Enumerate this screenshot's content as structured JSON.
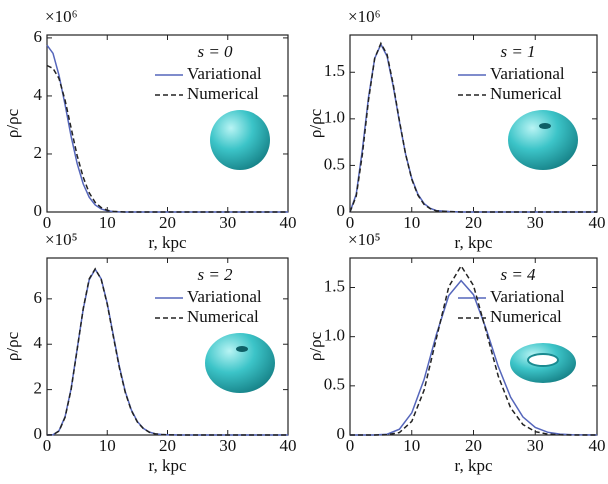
{
  "chart_data": [
    {
      "type": "line",
      "legend_title": "s = 0",
      "multiplier": "×10⁶",
      "xlabel": "r, kpc",
      "ylabel": "ρ/ρc",
      "x": [
        0,
        1,
        2,
        3,
        4,
        5,
        6,
        7,
        8,
        9,
        10,
        11,
        12,
        13,
        14,
        16,
        18,
        20,
        22,
        24,
        26,
        28,
        30,
        32,
        34,
        36,
        38,
        40
      ],
      "series": [
        {
          "name": "Variational",
          "color": "#5566bb",
          "linestyle": "solid",
          "values": [
            5.75,
            5.47,
            4.71,
            3.69,
            2.61,
            1.68,
            0.97,
            0.51,
            0.24,
            0.105,
            0.04,
            0.015,
            0.005,
            0,
            0,
            0,
            0,
            0,
            0,
            0,
            0,
            0,
            0,
            0,
            0,
            0,
            0,
            0
          ]
        },
        {
          "name": "Numerical",
          "color": "#222222",
          "linestyle": "dashed",
          "values": [
            5.05,
            4.95,
            4.6,
            3.85,
            2.9,
            1.95,
            1.2,
            0.66,
            0.33,
            0.15,
            0.06,
            0.02,
            0.01,
            0,
            0,
            0,
            0,
            0,
            0,
            0,
            0,
            0,
            0,
            0,
            0,
            0,
            0,
            0
          ]
        }
      ],
      "xlim": [
        0,
        40
      ],
      "ylim": [
        0,
        6.1
      ],
      "xticks": [
        0,
        10,
        20,
        30,
        40
      ],
      "yticks": [
        0,
        2,
        4,
        6
      ]
    },
    {
      "type": "line",
      "legend_title": "s = 1",
      "multiplier": "×10⁶",
      "xlabel": "r, kpc",
      "ylabel": "ρ/ρc",
      "x": [
        0,
        1,
        2,
        3,
        4,
        5,
        6,
        7,
        8,
        9,
        10,
        11,
        12,
        13,
        14,
        16,
        18,
        20,
        22,
        24,
        26,
        28,
        30,
        32,
        34,
        36,
        38,
        40
      ],
      "series": [
        {
          "name": "Variational",
          "color": "#5566bb",
          "linestyle": "solid",
          "values": [
            0,
            0.19,
            0.67,
            1.23,
            1.65,
            1.8,
            1.67,
            1.35,
            0.97,
            0.62,
            0.36,
            0.19,
            0.09,
            0.04,
            0.015,
            0.005,
            0,
            0,
            0,
            0,
            0,
            0,
            0,
            0,
            0,
            0,
            0,
            0
          ]
        },
        {
          "name": "Numerical",
          "color": "#222222",
          "linestyle": "dashed",
          "values": [
            0,
            0.17,
            0.62,
            1.2,
            1.65,
            1.81,
            1.69,
            1.37,
            0.98,
            0.62,
            0.35,
            0.18,
            0.08,
            0.035,
            0.012,
            0.004,
            0,
            0,
            0,
            0,
            0,
            0,
            0,
            0,
            0,
            0,
            0,
            0
          ]
        }
      ],
      "xlim": [
        0,
        40
      ],
      "ylim": [
        0,
        1.9
      ],
      "xticks": [
        0,
        10,
        20,
        30,
        40
      ],
      "yticks": [
        0,
        0.5,
        {
          "value": 1,
          "label": "1.0"
        },
        1.5
      ]
    },
    {
      "type": "line",
      "legend_title": "s = 2",
      "multiplier": "×10⁵",
      "xlabel": "r, kpc",
      "ylabel": "ρ/ρc",
      "x": [
        0,
        1,
        2,
        3,
        4,
        5,
        6,
        7,
        8,
        9,
        10,
        11,
        12,
        13,
        14,
        15,
        16,
        17,
        18,
        19,
        20,
        22,
        24,
        26,
        28,
        30,
        32,
        34,
        36,
        38,
        40
      ],
      "series": [
        {
          "name": "Variational",
          "color": "#5566bb",
          "linestyle": "solid",
          "values": [
            0,
            0.01,
            0.19,
            0.81,
            2.04,
            3.77,
            5.54,
            6.84,
            7.3,
            6.88,
            5.79,
            4.4,
            3.03,
            1.91,
            1.11,
            0.59,
            0.29,
            0.13,
            0.05,
            0.02,
            0.01,
            0,
            0,
            0,
            0,
            0,
            0,
            0,
            0,
            0,
            0
          ]
        },
        {
          "name": "Numerical",
          "color": "#222222",
          "linestyle": "dashed",
          "values": [
            0,
            0.01,
            0.17,
            0.78,
            2.0,
            3.75,
            5.56,
            6.88,
            7.32,
            6.86,
            5.75,
            4.35,
            2.98,
            1.87,
            1.08,
            0.57,
            0.28,
            0.12,
            0.05,
            0.02,
            0.01,
            0,
            0,
            0,
            0,
            0,
            0,
            0,
            0,
            0,
            0
          ]
        }
      ],
      "xlim": [
        0,
        40
      ],
      "ylim": [
        0,
        7.8
      ],
      "xticks": [
        0,
        10,
        20,
        30,
        40
      ],
      "yticks": [
        0,
        2,
        4,
        6
      ]
    },
    {
      "type": "line",
      "legend_title": "s = 4",
      "multiplier": "×10⁵",
      "xlabel": "r, kpc",
      "ylabel": "ρ/ρc",
      "x": [
        0,
        2,
        4,
        6,
        8,
        10,
        12,
        14,
        16,
        18,
        20,
        22,
        24,
        26,
        28,
        30,
        32,
        34,
        36,
        38,
        40
      ],
      "series": [
        {
          "name": "Variational",
          "color": "#5566bb",
          "linestyle": "solid",
          "values": [
            0,
            0,
            0,
            0.008,
            0.059,
            0.226,
            0.565,
            1.022,
            1.419,
            1.57,
            1.427,
            1.085,
            0.699,
            0.385,
            0.184,
            0.076,
            0.028,
            0.009,
            0.003,
            0.001,
            0
          ]
        },
        {
          "name": "Numerical",
          "color": "#222222",
          "linestyle": "dashed",
          "values": [
            0,
            0,
            0,
            0.002,
            0.024,
            0.139,
            0.456,
            0.984,
            1.508,
            1.72,
            1.519,
            1.065,
            0.6,
            0.277,
            0.107,
            0.034,
            0.009,
            0.002,
            0,
            0,
            0
          ]
        }
      ],
      "xlim": [
        0,
        40
      ],
      "ylim": [
        0,
        1.8
      ],
      "xticks": [
        0,
        10,
        20,
        30,
        40
      ],
      "yticks": [
        0,
        0.5,
        {
          "value": 1,
          "label": "1.0"
        },
        1.5
      ]
    }
  ]
}
